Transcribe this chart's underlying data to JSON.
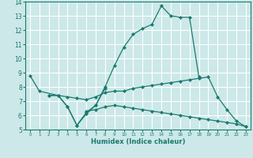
{
  "xlabel": "Humidex (Indice chaleur)",
  "xlim": [
    -0.5,
    23.5
  ],
  "ylim": [
    5,
    14
  ],
  "background_color": "#cce8e8",
  "grid_color": "#ffffff",
  "line_color": "#1a7a6e",
  "lines": [
    {
      "x": [
        0,
        1,
        3,
        4,
        5,
        6,
        7,
        8,
        9,
        10,
        11,
        12,
        13,
        14,
        15,
        16,
        17,
        18
      ],
      "y": [
        8.8,
        7.7,
        7.4,
        6.6,
        5.3,
        6.2,
        6.7,
        8.0,
        9.5,
        10.8,
        11.7,
        12.1,
        12.4,
        13.7,
        13.0,
        12.9,
        12.9,
        8.7
      ]
    },
    {
      "x": [
        2,
        3,
        4,
        5,
        6,
        7,
        8
      ],
      "y": [
        7.4,
        7.4,
        6.6,
        5.3,
        6.1,
        6.7,
        7.9
      ]
    },
    {
      "x": [
        2,
        3,
        4,
        5,
        6,
        7,
        8,
        9,
        10,
        11,
        12,
        13,
        14,
        15,
        16,
        17,
        18,
        19,
        20,
        21,
        22,
        23
      ],
      "y": [
        7.4,
        7.4,
        7.3,
        7.2,
        7.1,
        7.3,
        7.6,
        7.7,
        7.7,
        7.9,
        8.0,
        8.1,
        8.2,
        8.3,
        8.4,
        8.5,
        8.6,
        8.7,
        7.3,
        6.4,
        5.6,
        5.2
      ]
    },
    {
      "x": [
        6,
        7,
        8,
        9,
        10,
        11,
        12,
        13,
        14,
        15,
        16,
        17,
        18,
        19,
        20,
        21,
        22,
        23
      ],
      "y": [
        6.3,
        6.4,
        6.6,
        6.7,
        6.6,
        6.5,
        6.4,
        6.3,
        6.2,
        6.1,
        6.0,
        5.9,
        5.8,
        5.7,
        5.6,
        5.5,
        5.4,
        5.2
      ]
    }
  ]
}
